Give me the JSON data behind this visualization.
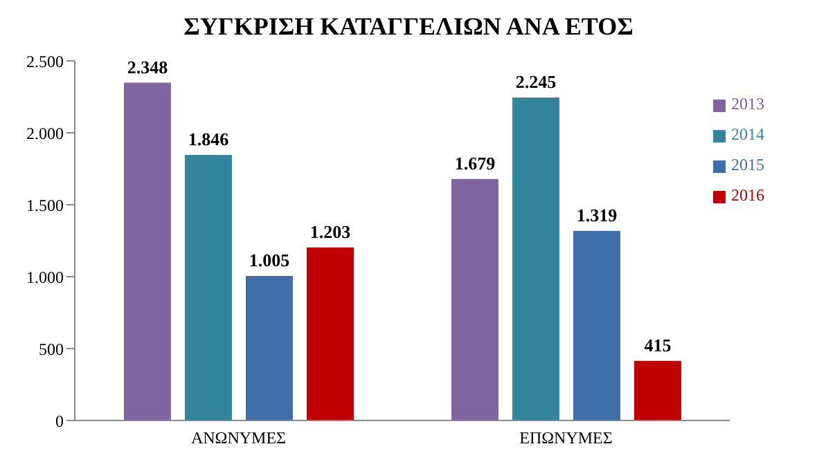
{
  "chart_data": {
    "type": "bar",
    "title": "ΣΥΓΚΡΙΣΗ ΚΑΤΑΓΓΕΛΙΩΝ ΑΝΑ ΕΤΟΣ",
    "categories": [
      "ΑΝΩΝΥΜΕΣ",
      "ΕΠΩΝΥΜΕΣ"
    ],
    "series": [
      {
        "name": "2013",
        "color": "#8064a2",
        "values": [
          2348,
          1679
        ],
        "value_labels": [
          "2.348",
          "1.679"
        ]
      },
      {
        "name": "2014",
        "color": "#31859c",
        "values": [
          1846,
          2245
        ],
        "value_labels": [
          "1.846",
          "2.245"
        ]
      },
      {
        "name": "2015",
        "color": "#3f6faa",
        "values": [
          1005,
          1319
        ],
        "value_labels": [
          "1.005",
          "1.319"
        ]
      },
      {
        "name": "2016",
        "color": "#c00000",
        "values": [
          1203,
          415
        ],
        "value_labels": [
          "1.203",
          "415"
        ]
      }
    ],
    "ylim": [
      0,
      2500
    ],
    "yticks": [
      0,
      {
        "value": 500,
        "label": "500"
      },
      {
        "value": 1000,
        "label": "1.000"
      },
      {
        "value": 1500,
        "label": "1.500"
      },
      {
        "value": 2000,
        "label": "2.000"
      },
      {
        "value": 2500,
        "label": "2.500"
      }
    ],
    "grid": false,
    "legend": "top right"
  }
}
